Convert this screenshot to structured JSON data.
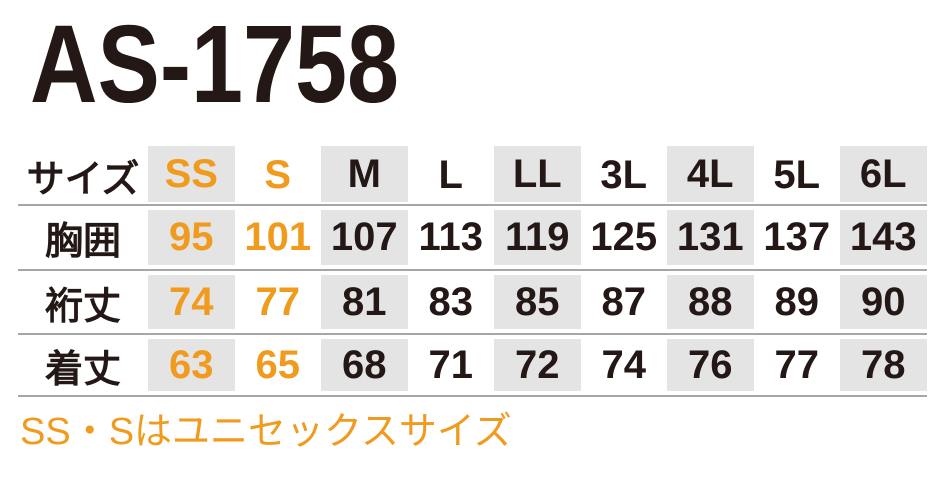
{
  "title": "AS-1758",
  "footnote": "SS・Sはユニセックスサイズ",
  "colors": {
    "accent_orange": "#F19B1E",
    "text_black": "#231815",
    "shaded_column_gray": "#E4E4E4",
    "rule_line_gray": "#A6A6A6",
    "background": "#FFFFFF"
  },
  "size_chart": {
    "header_label": "サイズ",
    "size_headers": [
      "SS",
      "S",
      "M",
      "L",
      "LL",
      "3L",
      "4L",
      "5L",
      "6L"
    ],
    "orange_columns": [
      0,
      1
    ],
    "shaded_columns": [
      0,
      2,
      4,
      6,
      8
    ],
    "rows": [
      {
        "label": "胸囲",
        "values": [
          "95",
          "101",
          "107",
          "113",
          "119",
          "125",
          "131",
          "137",
          "143"
        ]
      },
      {
        "label": "裄丈",
        "values": [
          "74",
          "77",
          "81",
          "83",
          "85",
          "87",
          "88",
          "89",
          "90"
        ]
      },
      {
        "label": "着丈",
        "values": [
          "63",
          "65",
          "68",
          "71",
          "72",
          "74",
          "76",
          "77",
          "78"
        ]
      }
    ]
  },
  "chart_data": {
    "type": "table",
    "title": "AS-1758",
    "columns": [
      "サイズ",
      "SS",
      "S",
      "M",
      "L",
      "LL",
      "3L",
      "4L",
      "5L",
      "6L"
    ],
    "rows": [
      [
        "胸囲",
        95,
        101,
        107,
        113,
        119,
        125,
        131,
        137,
        143
      ],
      [
        "裄丈",
        74,
        77,
        81,
        83,
        85,
        87,
        88,
        89,
        90
      ],
      [
        "着丈",
        63,
        65,
        68,
        71,
        72,
        74,
        76,
        77,
        78
      ]
    ],
    "highlighted_columns": [
      "SS",
      "S"
    ],
    "highlight_color": "#F19B1E",
    "note": "SS・Sはユニセックスサイズ",
    "layout_hints": {
      "shaded_size_columns": [
        "SS",
        "M",
        "LL",
        "4L",
        "6L"
      ],
      "grid": "horizontal rules only, alternating gray column bands"
    }
  }
}
